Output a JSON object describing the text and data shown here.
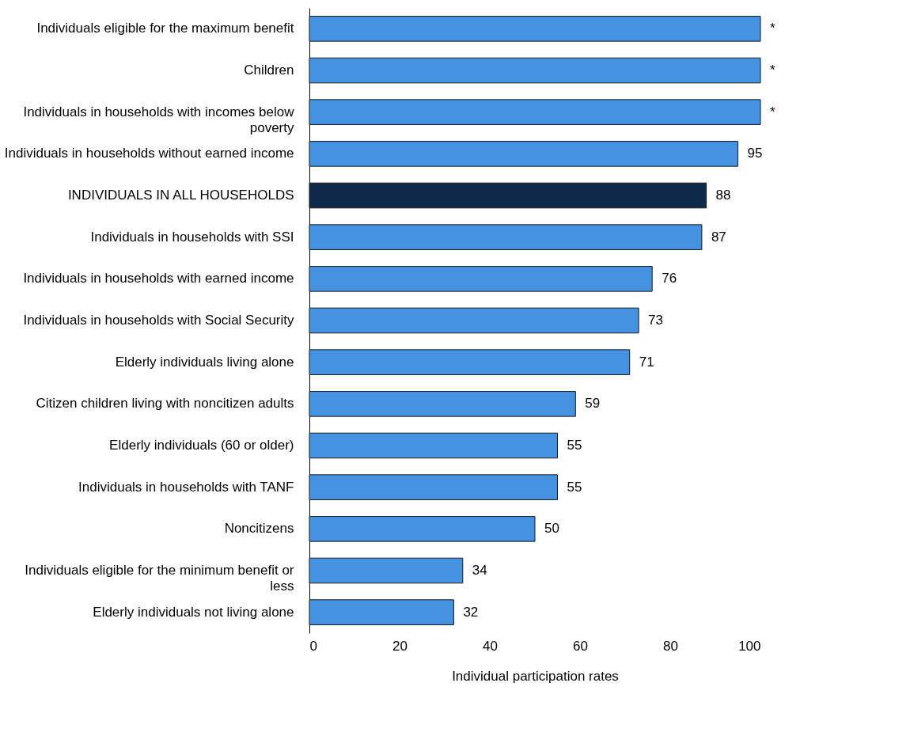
{
  "chart_data": {
    "type": "bar",
    "orientation": "horizontal",
    "xlabel": "Individual participation rates",
    "categories": [
      "Individuals eligible for the maximum benefit",
      "Children",
      "Individuals in households with incomes below poverty",
      "Individuals in households without earned income",
      "INDIVIDUALS IN ALL HOUSEHOLDS",
      "Individuals in households with SSI",
      "Individuals in households with earned income",
      "Individuals in households with Social Security",
      "Elderly individuals living alone",
      "Citizen children living with noncitizen adults",
      "Elderly individuals (60 or older)",
      "Individuals in households with TANF",
      "Noncitizens",
      "Individuals eligible for the minimum benefit or less",
      "Elderly individuals not living alone"
    ],
    "values": [
      100,
      100,
      100,
      95,
      88,
      87,
      76,
      73,
      71,
      59,
      55,
      55,
      50,
      34,
      32
    ],
    "value_labels": [
      "*",
      "*",
      "*",
      "95",
      "88",
      "87",
      "76",
      "73",
      "71",
      "59",
      "55",
      "55",
      "50",
      "34",
      "32"
    ],
    "colors": [
      "#4592e0",
      "#4592e0",
      "#4592e0",
      "#4592e0",
      "#0d2a4a",
      "#4592e0",
      "#4592e0",
      "#4592e0",
      "#4592e0",
      "#4592e0",
      "#4592e0",
      "#4592e0",
      "#4592e0",
      "#4592e0",
      "#4592e0"
    ],
    "xlim": [
      0,
      100
    ],
    "xticks": [
      0,
      20,
      40,
      60,
      80,
      100
    ],
    "grid": false
  }
}
